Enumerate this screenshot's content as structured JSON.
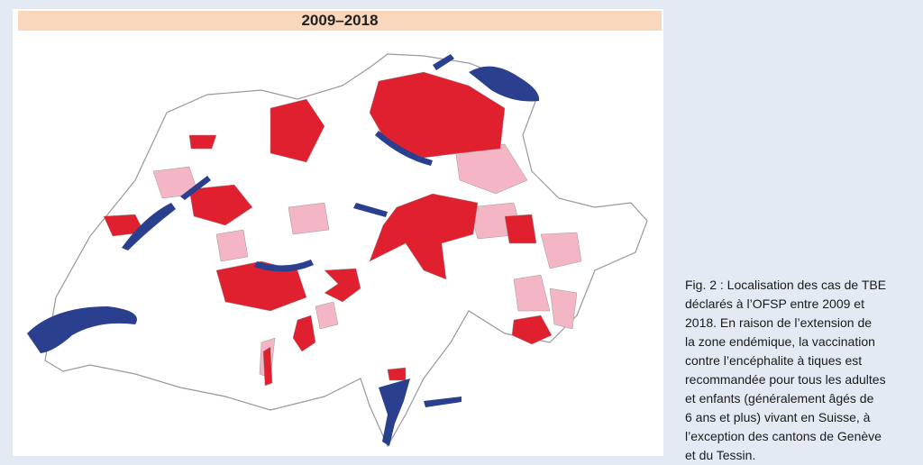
{
  "header": {
    "title": "2009–2018"
  },
  "caption": {
    "lines": [
      "Fig. 2 : Localisation des cas de TBE",
      "déclarés à l’OFSP entre 2009 et",
      "2018. En raison de l’extension de",
      "la zone endémique, la vaccination",
      "contre l’encéphalite à tiques est",
      "recommandée pour tous les adultes",
      "et enfants (généralement âgés de",
      "6 ans et plus) vivant en Suisse, à",
      "l’exception des cantons de Genève",
      "et du Tessin."
    ]
  }
}
